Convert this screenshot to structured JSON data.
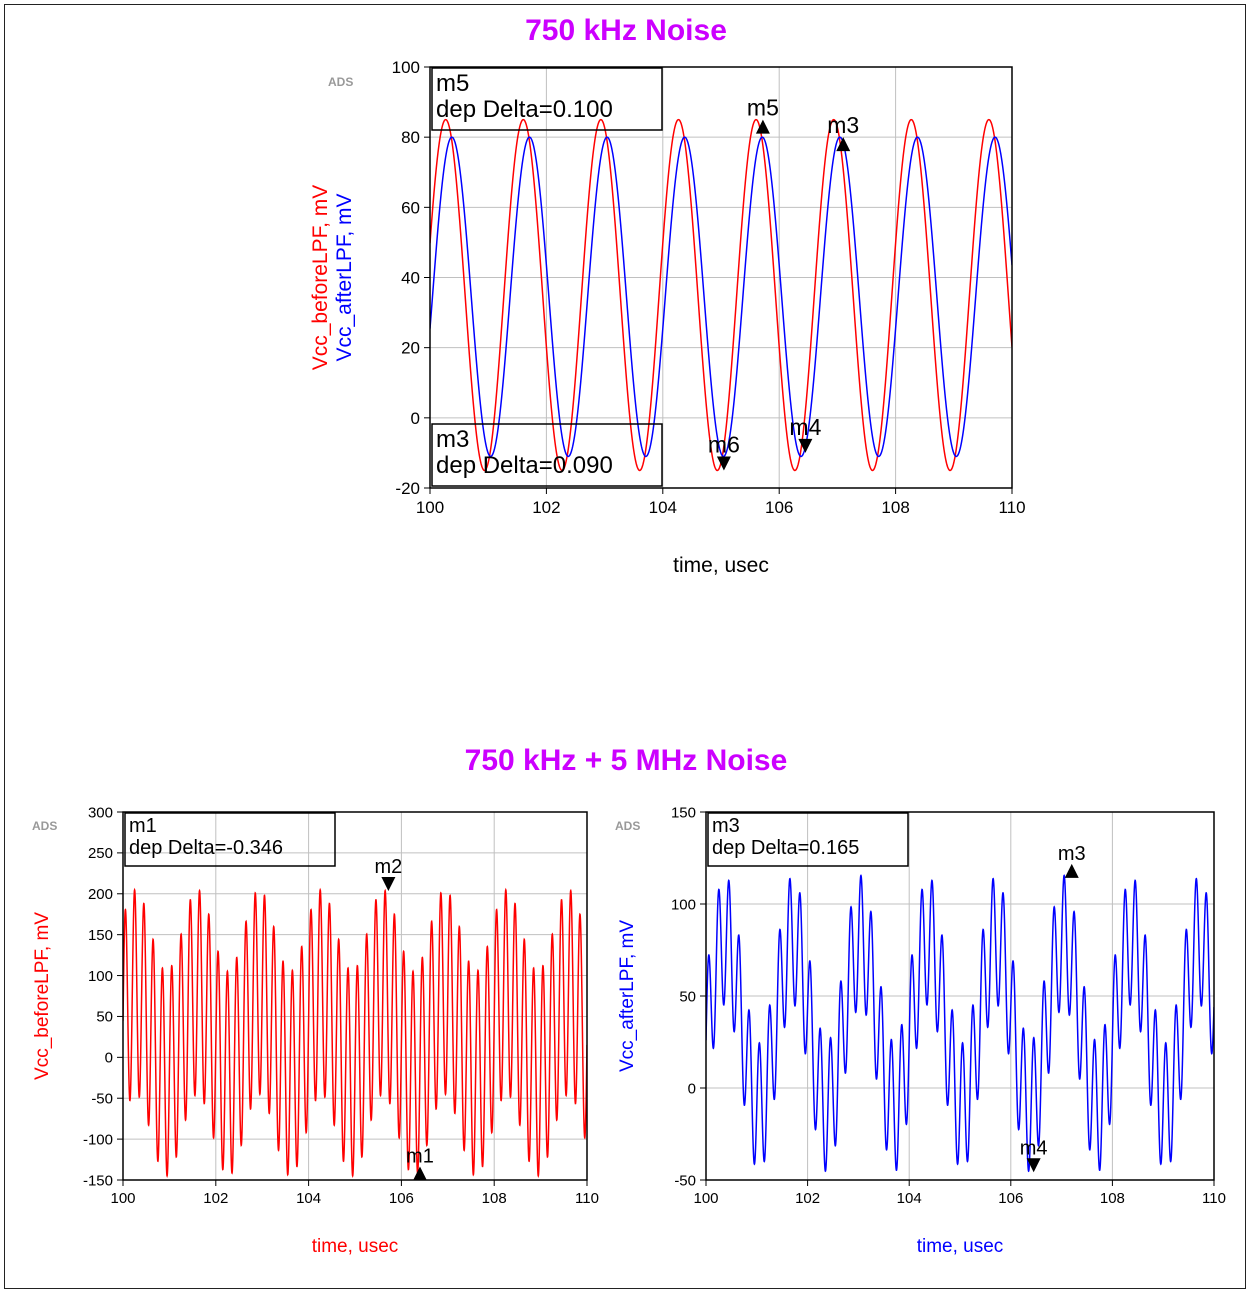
{
  "figure": {
    "top_title": "750 kHz Noise",
    "bottom_title": "750 kHz + 5 MHz Noise",
    "watermark": "ADS"
  },
  "colors": {
    "red": "#ff0000",
    "blue": "#0000ff",
    "title": "#cc00ff",
    "grid": "#c0c0c0"
  },
  "chart_data": [
    {
      "type": "line",
      "title": "750 kHz Noise",
      "xlabel": "time, usec",
      "ylabel": [
        "Vcc_beforeLPF, mV",
        "Vcc_afterLPF, mV"
      ],
      "xlim": [
        100,
        110
      ],
      "ylim": [
        -20,
        100
      ],
      "xticks": [
        100,
        102,
        104,
        106,
        108,
        110
      ],
      "yticks": [
        -20,
        0,
        20,
        40,
        60,
        80,
        100
      ],
      "grid": true,
      "series": [
        {
          "name": "Vcc_beforeLPF, mV",
          "color": "#ff0000",
          "components": [
            {
              "amp": 50,
              "freq_mhz": 0.75,
              "phase": 0.3,
              "offset": 35
            }
          ],
          "points": 1200
        },
        {
          "name": "Vcc_afterLPF, mV",
          "color": "#0000ff",
          "components": [
            {
              "amp": 45.5,
              "freq_mhz": 0.75,
              "phase": -0.2,
              "offset": 34.5
            }
          ],
          "points": 1200
        }
      ],
      "markers": [
        {
          "name": "m5",
          "x": 105.72,
          "y": 83,
          "dir": "up"
        },
        {
          "name": "m3",
          "x": 107.1,
          "y": 78,
          "dir": "up"
        },
        {
          "name": "m6",
          "x": 105.05,
          "y": -13,
          "dir": "down"
        },
        {
          "name": "m4",
          "x": 106.45,
          "y": -8,
          "dir": "down"
        }
      ],
      "readouts": [
        {
          "line1": "m5",
          "line2": "dep Delta=0.100",
          "pos": "top-left"
        },
        {
          "line1": "m3",
          "line2": "dep Delta=0.090",
          "pos": "bottom-left"
        }
      ]
    },
    {
      "type": "line",
      "xlabel": "time, usec",
      "ylabel": [
        "Vcc_beforeLPF, mV"
      ],
      "xlim": [
        100,
        110
      ],
      "ylim": [
        -150,
        300
      ],
      "xticks": [
        100,
        102,
        104,
        106,
        108,
        110
      ],
      "yticks": [
        -150,
        -100,
        -50,
        0,
        50,
        100,
        150,
        200,
        250,
        300
      ],
      "grid": true,
      "series": [
        {
          "name": "Vcc_beforeLPF, mV",
          "color": "#ff0000",
          "components": [
            {
              "amp": 50,
              "freq_mhz": 0.75,
              "phase": 0.3,
              "offset": 30
            },
            {
              "amp": 125,
              "freq_mhz": 5,
              "phase": 0
            }
          ],
          "points": 4000
        }
      ],
      "markers": [
        {
          "name": "m2",
          "x": 105.72,
          "y": 212,
          "dir": "down"
        },
        {
          "name": "m1",
          "x": 106.4,
          "y": -142,
          "dir": "up"
        }
      ],
      "readouts": [
        {
          "line1": "m1",
          "line2": "dep Delta=-0.346",
          "pos": "top-left"
        }
      ]
    },
    {
      "type": "line",
      "xlabel": "time, usec",
      "ylabel": [
        "Vcc_afterLPF, mV"
      ],
      "xlim": [
        100,
        110
      ],
      "ylim": [
        -50,
        150
      ],
      "xticks": [
        100,
        102,
        104,
        106,
        108,
        110
      ],
      "yticks": [
        -50,
        0,
        50,
        100,
        150
      ],
      "grid": true,
      "series": [
        {
          "name": "Vcc_afterLPF, mV",
          "color": "#0000ff",
          "components": [
            {
              "amp": 45.5,
              "freq_mhz": 0.75,
              "phase": -0.2,
              "offset": 35
            },
            {
              "amp": 35,
              "freq_mhz": 5,
              "phase": 0
            }
          ],
          "points": 4000
        }
      ],
      "markers": [
        {
          "name": "m3",
          "x": 107.2,
          "y": 118,
          "dir": "up"
        },
        {
          "name": "m4",
          "x": 106.45,
          "y": -42,
          "dir": "down"
        }
      ],
      "readouts": [
        {
          "line1": "m3",
          "line2": "dep Delta=0.165",
          "pos": "top-left"
        }
      ]
    }
  ]
}
